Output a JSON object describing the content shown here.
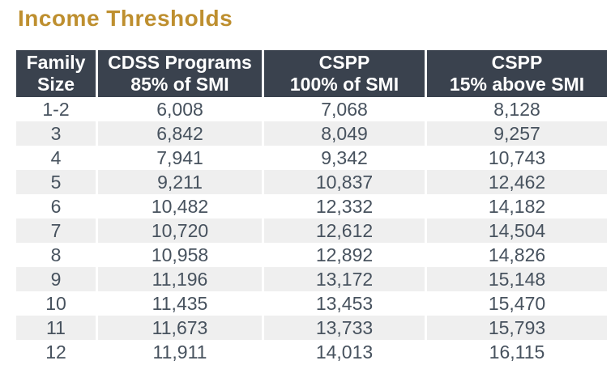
{
  "page": {
    "title": "Income Thresholds"
  },
  "theme": {
    "title_color": "#BE8F2F",
    "header_background": "#3A424E",
    "header_text_color": "#FFFFFF",
    "body_text_color": "#47525E",
    "alternate_row_background": "#EFEFEF",
    "page_background": "#FFFFFF"
  },
  "chart_data": {
    "type": "table",
    "title": "Income Thresholds",
    "column_headers": [
      "Family\nSize",
      "CDSS Programs\n85% of SMI",
      "CSPP\n100% of SMI",
      "CSPP\n15% above SMI"
    ],
    "rows": [
      [
        "1-2",
        "6,008",
        "7,068",
        "8,128"
      ],
      [
        "3",
        "6,842",
        "8,049",
        "9,257"
      ],
      [
        "4",
        "7,941",
        "9,342",
        "10,743"
      ],
      [
        "5",
        "9,211",
        "10,837",
        "12,462"
      ],
      [
        "6",
        "10,482",
        "12,332",
        "14,182"
      ],
      [
        "7",
        "10,720",
        "12,612",
        "14,504"
      ],
      [
        "8",
        "10,958",
        "12,892",
        "14,826"
      ],
      [
        "9",
        "11,196",
        "13,172",
        "15,148"
      ],
      [
        "10",
        "11,435",
        "13,453",
        "15,470"
      ],
      [
        "11",
        "11,673",
        "13,733",
        "15,793"
      ],
      [
        "12",
        "11,911",
        "14,013",
        "16,115"
      ]
    ]
  }
}
